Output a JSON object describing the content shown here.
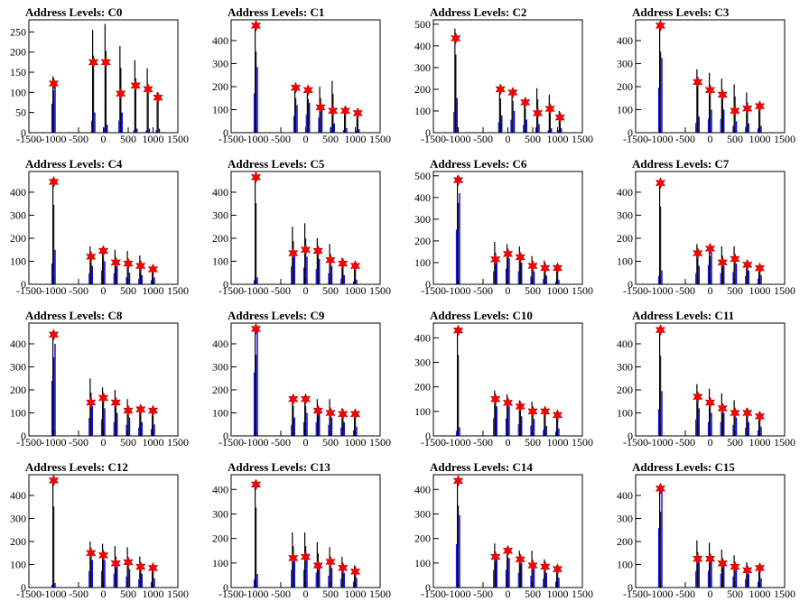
{
  "panel_titles": [
    "Address Levels: C0",
    "Address Levels: C1",
    "Address Levels: C2",
    "Address Levels: C3",
    "Address Levels: C4",
    "Address Levels: C5",
    "Address Levels: C6",
    "Address Levels: C7",
    "Address Levels: C8",
    "Address Levels: C9",
    "Address Levels: C10",
    "Address Levels: C11",
    "Address Levels: C12",
    "Address Levels: C13",
    "Address Levels: C14",
    "Address Levels: C15"
  ],
  "colors": {
    "black_bars": "#000000",
    "blue_bars": "#0000ff",
    "markers": "#ff0000"
  },
  "chart_data": [
    {
      "type": "bar",
      "title": "Address Levels: C0",
      "xlim": [
        -1500,
        1500
      ],
      "ylim": [
        0,
        280
      ],
      "yticks": [
        0,
        50,
        100,
        150,
        200,
        250
      ],
      "xticks": [
        -1500,
        -1000,
        -500,
        0,
        500,
        1000,
        1500
      ],
      "levels": [
        {
          "x": -1000,
          "black": 140,
          "blue": 120,
          "star": 122
        },
        {
          "x": -200,
          "black": 255,
          "blue": 50,
          "star": 175
        },
        {
          "x": 50,
          "black": 270,
          "blue": 20,
          "star": 175
        },
        {
          "x": 350,
          "black": 215,
          "blue": 50,
          "star": 97
        },
        {
          "x": 650,
          "black": 180,
          "blue": 10,
          "star": 117
        },
        {
          "x": 900,
          "black": 160,
          "blue": 10,
          "star": 108
        },
        {
          "x": 1100,
          "black": 100,
          "blue": 10,
          "star": 87
        }
      ]
    },
    {
      "type": "bar",
      "title": "Address Levels: C1",
      "xlim": [
        -1500,
        1500
      ],
      "ylim": [
        0,
        490
      ],
      "yticks": [
        0,
        100,
        200,
        300,
        400
      ],
      "xticks": [
        -1500,
        -1000,
        -500,
        0,
        500,
        1000,
        1500
      ],
      "levels": [
        {
          "x": -1000,
          "black": 470,
          "blue": 285,
          "star": 465
        },
        {
          "x": -200,
          "black": 200,
          "blue": 120,
          "star": 195
        },
        {
          "x": 50,
          "black": 195,
          "blue": 130,
          "star": 185
        },
        {
          "x": 300,
          "black": 200,
          "blue": 110,
          "star": 110
        },
        {
          "x": 550,
          "black": 225,
          "blue": 40,
          "star": 95
        },
        {
          "x": 800,
          "black": 110,
          "blue": 20,
          "star": 95
        },
        {
          "x": 1050,
          "black": 95,
          "blue": 15,
          "star": 85
        }
      ]
    },
    {
      "type": "bar",
      "title": "Address Levels: C2",
      "xlim": [
        -1500,
        1500
      ],
      "ylim": [
        0,
        520
      ],
      "yticks": [
        0,
        100,
        200,
        300,
        400,
        500
      ],
      "xticks": [
        -1500,
        -1000,
        -500,
        0,
        500,
        1000,
        1500
      ],
      "levels": [
        {
          "x": -1050,
          "black": 480,
          "blue": 160,
          "star": 435
        },
        {
          "x": -150,
          "black": 210,
          "blue": 80,
          "star": 200
        },
        {
          "x": 100,
          "black": 195,
          "blue": 100,
          "star": 185
        },
        {
          "x": 350,
          "black": 150,
          "blue": 60,
          "star": 140
        },
        {
          "x": 600,
          "black": 205,
          "blue": 40,
          "star": 90
        },
        {
          "x": 850,
          "black": 175,
          "blue": 20,
          "star": 110
        },
        {
          "x": 1050,
          "black": 100,
          "blue": 20,
          "star": 70
        }
      ]
    },
    {
      "type": "bar",
      "title": "Address Levels: C3",
      "xlim": [
        -1500,
        1500
      ],
      "ylim": [
        0,
        490
      ],
      "yticks": [
        0,
        100,
        200,
        300,
        400
      ],
      "xticks": [
        -1500,
        -1000,
        -500,
        0,
        500,
        1000,
        1500
      ],
      "levels": [
        {
          "x": -1000,
          "black": 470,
          "blue": 325,
          "star": 465
        },
        {
          "x": -250,
          "black": 275,
          "blue": 70,
          "star": 220
        },
        {
          "x": 0,
          "black": 260,
          "blue": 100,
          "star": 185
        },
        {
          "x": 250,
          "black": 235,
          "blue": 100,
          "star": 165
        },
        {
          "x": 500,
          "black": 210,
          "blue": 50,
          "star": 95
        },
        {
          "x": 750,
          "black": 175,
          "blue": 40,
          "star": 105
        },
        {
          "x": 1000,
          "black": 125,
          "blue": 30,
          "star": 115
        }
      ]
    },
    {
      "type": "bar",
      "title": "Address Levels: C4",
      "xlim": [
        -1500,
        1500
      ],
      "ylim": [
        0,
        490
      ],
      "yticks": [
        0,
        100,
        200,
        300,
        400
      ],
      "xticks": [
        -1500,
        -1000,
        -500,
        0,
        500,
        1000,
        1500
      ],
      "levels": [
        {
          "x": -1000,
          "black": 460,
          "blue": 150,
          "star": 445
        },
        {
          "x": -250,
          "black": 165,
          "blue": 80,
          "star": 120
        },
        {
          "x": 0,
          "black": 160,
          "blue": 100,
          "star": 145
        },
        {
          "x": 250,
          "black": 150,
          "blue": 80,
          "star": 95
        },
        {
          "x": 500,
          "black": 145,
          "blue": 50,
          "star": 90
        },
        {
          "x": 750,
          "black": 125,
          "blue": 40,
          "star": 80
        },
        {
          "x": 1000,
          "black": 80,
          "blue": 30,
          "star": 65
        }
      ]
    },
    {
      "type": "bar",
      "title": "Address Levels: C5",
      "xlim": [
        -1500,
        1500
      ],
      "ylim": [
        0,
        490
      ],
      "yticks": [
        0,
        100,
        200,
        300,
        400
      ],
      "xticks": [
        -1500,
        -1000,
        -500,
        0,
        500,
        1000,
        1500
      ],
      "levels": [
        {
          "x": -1000,
          "black": 470,
          "blue": 30,
          "star": 465
        },
        {
          "x": -250,
          "black": 250,
          "blue": 130,
          "star": 135
        },
        {
          "x": 0,
          "black": 265,
          "blue": 120,
          "star": 150
        },
        {
          "x": 250,
          "black": 200,
          "blue": 110,
          "star": 145
        },
        {
          "x": 500,
          "black": 175,
          "blue": 80,
          "star": 105
        },
        {
          "x": 750,
          "black": 115,
          "blue": 40,
          "star": 90
        },
        {
          "x": 1000,
          "black": 90,
          "blue": 20,
          "star": 80
        }
      ]
    },
    {
      "type": "bar",
      "title": "Address Levels: C6",
      "xlim": [
        -1500,
        1500
      ],
      "ylim": [
        0,
        520
      ],
      "yticks": [
        0,
        100,
        200,
        300,
        400,
        500
      ],
      "xticks": [
        -1500,
        -1000,
        -500,
        0,
        500,
        1000,
        1500
      ],
      "levels": [
        {
          "x": -1000,
          "black": 500,
          "blue": 420,
          "star": 480
        },
        {
          "x": -250,
          "black": 195,
          "blue": 100,
          "star": 115
        },
        {
          "x": 0,
          "black": 185,
          "blue": 120,
          "star": 140
        },
        {
          "x": 250,
          "black": 175,
          "blue": 100,
          "star": 125
        },
        {
          "x": 500,
          "black": 130,
          "blue": 60,
          "star": 85
        },
        {
          "x": 750,
          "black": 110,
          "blue": 40,
          "star": 75
        },
        {
          "x": 1000,
          "black": 90,
          "blue": 20,
          "star": 75
        }
      ]
    },
    {
      "type": "bar",
      "title": "Address Levels: C7",
      "xlim": [
        -1500,
        1500
      ],
      "ylim": [
        0,
        490
      ],
      "yticks": [
        0,
        100,
        200,
        300,
        400
      ],
      "xticks": [
        -1500,
        -1000,
        -500,
        0,
        500,
        1000,
        1500
      ],
      "levels": [
        {
          "x": -1000,
          "black": 450,
          "blue": 60,
          "star": 440
        },
        {
          "x": -250,
          "black": 175,
          "blue": 80,
          "star": 135
        },
        {
          "x": 0,
          "black": 165,
          "blue": 140,
          "star": 155
        },
        {
          "x": 250,
          "black": 165,
          "blue": 80,
          "star": 95
        },
        {
          "x": 500,
          "black": 165,
          "blue": 90,
          "star": 110
        },
        {
          "x": 750,
          "black": 100,
          "blue": 60,
          "star": 85
        },
        {
          "x": 1000,
          "black": 80,
          "blue": 40,
          "star": 70
        }
      ]
    },
    {
      "type": "bar",
      "title": "Address Levels: C8",
      "xlim": [
        -1500,
        1500
      ],
      "ylim": [
        0,
        490
      ],
      "yticks": [
        0,
        100,
        200,
        300,
        400
      ],
      "xticks": [
        -1500,
        -1000,
        -500,
        0,
        500,
        1000,
        1500
      ],
      "levels": [
        {
          "x": -1000,
          "black": 455,
          "blue": 400,
          "star": 440
        },
        {
          "x": -250,
          "black": 250,
          "blue": 130,
          "star": 145
        },
        {
          "x": 0,
          "black": 210,
          "blue": 120,
          "star": 165
        },
        {
          "x": 250,
          "black": 200,
          "blue": 100,
          "star": 145
        },
        {
          "x": 500,
          "black": 160,
          "blue": 80,
          "star": 110
        },
        {
          "x": 750,
          "black": 125,
          "blue": 60,
          "star": 115
        },
        {
          "x": 1000,
          "black": 115,
          "blue": 50,
          "star": 110
        }
      ]
    },
    {
      "type": "bar",
      "title": "Address Levels: C9",
      "xlim": [
        -1500,
        1500
      ],
      "ylim": [
        0,
        490
      ],
      "yticks": [
        0,
        100,
        200,
        300,
        400
      ],
      "xticks": [
        -1500,
        -1000,
        -500,
        0,
        500,
        1000,
        1500
      ],
      "levels": [
        {
          "x": -1000,
          "black": 470,
          "blue": 460,
          "star": 465
        },
        {
          "x": -250,
          "black": 175,
          "blue": 80,
          "star": 160
        },
        {
          "x": 0,
          "black": 175,
          "blue": 100,
          "star": 160
        },
        {
          "x": 250,
          "black": 160,
          "blue": 100,
          "star": 110
        },
        {
          "x": 500,
          "black": 160,
          "blue": 80,
          "star": 100
        },
        {
          "x": 750,
          "black": 120,
          "blue": 60,
          "star": 95
        },
        {
          "x": 1000,
          "black": 110,
          "blue": 40,
          "star": 95
        }
      ]
    },
    {
      "type": "bar",
      "title": "Address Levels: C10",
      "xlim": [
        -1500,
        1500
      ],
      "ylim": [
        0,
        460
      ],
      "yticks": [
        0,
        100,
        200,
        300,
        400
      ],
      "xticks": [
        -1500,
        -1000,
        -500,
        0,
        500,
        1000,
        1500
      ],
      "levels": [
        {
          "x": -1000,
          "black": 440,
          "blue": 35,
          "star": 430
        },
        {
          "x": -250,
          "black": 185,
          "blue": 120,
          "star": 150
        },
        {
          "x": 0,
          "black": 170,
          "blue": 120,
          "star": 135
        },
        {
          "x": 250,
          "black": 145,
          "blue": 80,
          "star": 120
        },
        {
          "x": 500,
          "black": 140,
          "blue": 70,
          "star": 100
        },
        {
          "x": 750,
          "black": 115,
          "blue": 40,
          "star": 100
        },
        {
          "x": 1000,
          "black": 100,
          "blue": 30,
          "star": 85
        }
      ]
    },
    {
      "type": "bar",
      "title": "Address Levels: C11",
      "xlim": [
        -1500,
        1500
      ],
      "ylim": [
        0,
        490
      ],
      "yticks": [
        0,
        100,
        200,
        300,
        400
      ],
      "xticks": [
        -1500,
        -1000,
        -500,
        0,
        500,
        1000,
        1500
      ],
      "levels": [
        {
          "x": -1000,
          "black": 465,
          "blue": 195,
          "star": 460
        },
        {
          "x": -250,
          "black": 225,
          "blue": 120,
          "star": 170
        },
        {
          "x": 0,
          "black": 205,
          "blue": 100,
          "star": 145
        },
        {
          "x": 250,
          "black": 185,
          "blue": 100,
          "star": 120
        },
        {
          "x": 500,
          "black": 155,
          "blue": 80,
          "star": 100
        },
        {
          "x": 750,
          "black": 120,
          "blue": 60,
          "star": 100
        },
        {
          "x": 1000,
          "black": 100,
          "blue": 40,
          "star": 85
        }
      ]
    },
    {
      "type": "bar",
      "title": "Address Levels: C12",
      "xlim": [
        -1500,
        1500
      ],
      "ylim": [
        0,
        490
      ],
      "yticks": [
        0,
        100,
        200,
        300,
        400
      ],
      "xticks": [
        -1500,
        -1000,
        -500,
        0,
        500,
        1000,
        1500
      ],
      "levels": [
        {
          "x": -1000,
          "black": 470,
          "blue": 20,
          "star": 465
        },
        {
          "x": -250,
          "black": 200,
          "blue": 120,
          "star": 150
        },
        {
          "x": 0,
          "black": 190,
          "blue": 120,
          "star": 140
        },
        {
          "x": 250,
          "black": 180,
          "blue": 100,
          "star": 105
        },
        {
          "x": 500,
          "black": 175,
          "blue": 80,
          "star": 110
        },
        {
          "x": 750,
          "black": 135,
          "blue": 60,
          "star": 90
        },
        {
          "x": 1000,
          "black": 100,
          "blue": 40,
          "star": 85
        }
      ]
    },
    {
      "type": "bar",
      "title": "Address Levels: C13",
      "xlim": [
        -1500,
        1500
      ],
      "ylim": [
        0,
        460
      ],
      "yticks": [
        0,
        100,
        200,
        300,
        400
      ],
      "xticks": [
        -1500,
        -1000,
        -500,
        0,
        500,
        1000,
        1500
      ],
      "levels": [
        {
          "x": -1000,
          "black": 435,
          "blue": 55,
          "star": 420
        },
        {
          "x": -250,
          "black": 225,
          "blue": 120,
          "star": 120
        },
        {
          "x": 0,
          "black": 225,
          "blue": 120,
          "star": 125
        },
        {
          "x": 250,
          "black": 185,
          "blue": 100,
          "star": 90
        },
        {
          "x": 500,
          "black": 165,
          "blue": 80,
          "star": 105
        },
        {
          "x": 750,
          "black": 125,
          "blue": 60,
          "star": 80
        },
        {
          "x": 1000,
          "black": 90,
          "blue": 40,
          "star": 65
        }
      ]
    },
    {
      "type": "bar",
      "title": "Address Levels: C14",
      "xlim": [
        -1500,
        1500
      ],
      "ylim": [
        0,
        460
      ],
      "yticks": [
        0,
        100,
        200,
        300,
        400
      ],
      "xticks": [
        -1500,
        -1000,
        -500,
        0,
        500,
        1000,
        1500
      ],
      "levels": [
        {
          "x": -1000,
          "black": 445,
          "blue": 295,
          "star": 435
        },
        {
          "x": -250,
          "black": 180,
          "blue": 120,
          "star": 125
        },
        {
          "x": 0,
          "black": 165,
          "blue": 120,
          "star": 150
        },
        {
          "x": 250,
          "black": 150,
          "blue": 100,
          "star": 115
        },
        {
          "x": 500,
          "black": 150,
          "blue": 80,
          "star": 90
        },
        {
          "x": 750,
          "black": 115,
          "blue": 60,
          "star": 85
        },
        {
          "x": 1000,
          "black": 90,
          "blue": 40,
          "star": 75
        }
      ]
    },
    {
      "type": "bar",
      "title": "Address Levels: C15",
      "xlim": [
        -1500,
        1500
      ],
      "ylim": [
        0,
        490
      ],
      "yticks": [
        0,
        100,
        200,
        300,
        400
      ],
      "xticks": [
        -1500,
        -1000,
        -500,
        0,
        500,
        1000,
        1500
      ],
      "levels": [
        {
          "x": -1000,
          "black": 440,
          "blue": 430,
          "star": 430
        },
        {
          "x": -250,
          "black": 205,
          "blue": 120,
          "star": 125
        },
        {
          "x": 0,
          "black": 195,
          "blue": 120,
          "star": 125
        },
        {
          "x": 250,
          "black": 165,
          "blue": 100,
          "star": 105
        },
        {
          "x": 500,
          "black": 140,
          "blue": 80,
          "star": 90
        },
        {
          "x": 750,
          "black": 110,
          "blue": 60,
          "star": 75
        },
        {
          "x": 1000,
          "black": 95,
          "blue": 40,
          "star": 85
        }
      ]
    }
  ]
}
